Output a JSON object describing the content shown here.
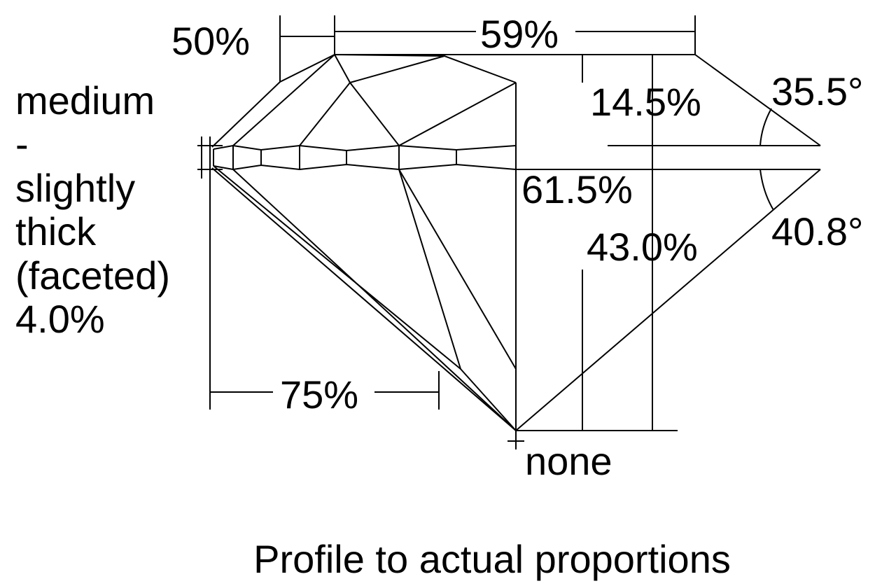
{
  "labels": {
    "star_length": "50%",
    "table": "59%",
    "crown_height": "14.5%",
    "crown_angle": "35.5°",
    "total_depth": "61.5%",
    "pavilion_depth": "43.0%",
    "pavilion_angle": "40.8°",
    "lower_half": "75%",
    "culet": "none"
  },
  "girdle": [
    "medium",
    "-",
    "slightly",
    "thick",
    "(faceted)",
    "4.0%"
  ],
  "caption": "Profile to actual proportions"
}
